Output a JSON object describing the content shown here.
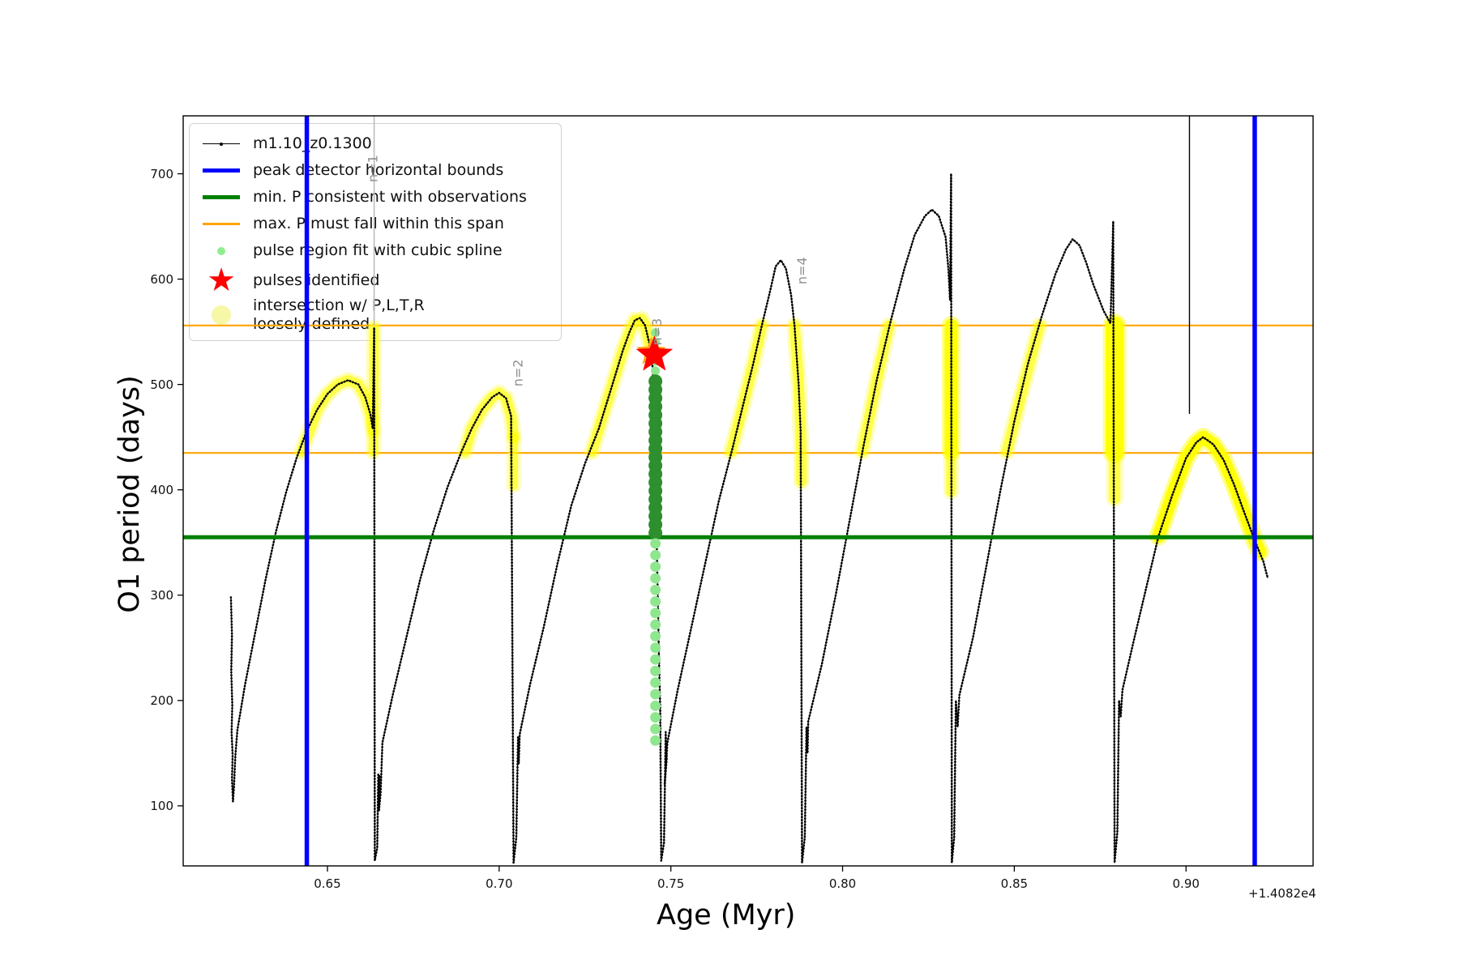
{
  "figure": {
    "xlabel": "Age (Myr)",
    "ylabel": "O1 period (days)",
    "x_offset_text": "+1.4082e4"
  },
  "legend": {
    "items": [
      {
        "label": "m1.10_z0.1300",
        "swatch": "line-dot",
        "color": "#000000",
        "lw": 1.5
      },
      {
        "label": "peak detector horizontal bounds",
        "swatch": "line",
        "color": "#0000ff",
        "lw": 5
      },
      {
        "label": "min. P consistent with observations",
        "swatch": "line",
        "color": "#008000",
        "lw": 5
      },
      {
        "label": "max. P must fall within this span",
        "swatch": "line",
        "color": "#ffa500",
        "lw": 2.5
      },
      {
        "label": "pulse region fit with cubic spline",
        "swatch": "dot",
        "color": "#90ee90",
        "size": 10
      },
      {
        "label": "pulses identified",
        "swatch": "star",
        "color": "#ff0000",
        "size": 40
      },
      {
        "label": "intersection w/ P,L,T,R",
        "label2": "loosely defined",
        "swatch": "dot",
        "color": "#f7f7a8",
        "size": 24
      }
    ]
  },
  "chart_data": {
    "type": "line",
    "title": "",
    "xlabel": "Age (Myr)",
    "ylabel": "O1 period (days)",
    "x_offset": "+1.4082e4",
    "xlim": [
      0.608,
      0.937
    ],
    "ylim": [
      43,
      755
    ],
    "grid": false,
    "legend_position": "upper left",
    "xticks": [
      {
        "v": 0.65,
        "label": "0.65"
      },
      {
        "v": 0.7,
        "label": "0.70"
      },
      {
        "v": 0.75,
        "label": "0.75"
      },
      {
        "v": 0.8,
        "label": "0.80"
      },
      {
        "v": 0.85,
        "label": "0.85"
      },
      {
        "v": 0.9,
        "label": "0.90"
      }
    ],
    "yticks": [
      {
        "v": 100,
        "label": "100"
      },
      {
        "v": 200,
        "label": "200"
      },
      {
        "v": 300,
        "label": "300"
      },
      {
        "v": 400,
        "label": "400"
      },
      {
        "v": 500,
        "label": "500"
      },
      {
        "v": 600,
        "label": "600"
      },
      {
        "v": 700,
        "label": "700"
      }
    ],
    "hlines": [
      {
        "name": "max-P-upper-bound",
        "y": 556,
        "color": "#ffa500",
        "lw": 2.2
      },
      {
        "name": "max-P-lower-bound",
        "y": 435,
        "color": "#ffa500",
        "lw": 2.2
      },
      {
        "name": "min-P-observed",
        "y": 355,
        "color": "#008000",
        "lw": 5
      }
    ],
    "vlines": [
      {
        "name": "peak-detector-left",
        "x": 0.644,
        "y1": 43,
        "y2": 755,
        "color": "#0000ff",
        "lw": 5.5
      },
      {
        "name": "peak-detector-right",
        "x": 0.92,
        "y1": 43,
        "y2": 755,
        "color": "#0000ff",
        "lw": 5.5
      },
      {
        "name": "n1-marker-line",
        "x": 0.6636,
        "y1": 556,
        "y2": 755,
        "color": "#bdbdbd",
        "lw": 1.6
      },
      {
        "name": "spur-line",
        "x": 0.901,
        "y1": 472,
        "y2": 755,
        "color": "#000000",
        "lw": 1.4
      }
    ],
    "n_labels": [
      {
        "text": "n=1",
        "x": 0.6645,
        "y": 692
      },
      {
        "text": "n=2",
        "x": 0.7068,
        "y": 498
      },
      {
        "text": "n=3",
        "x": 0.7472,
        "y": 537
      },
      {
        "text": "n=4",
        "x": 0.7895,
        "y": 595
      }
    ],
    "series": [
      {
        "name": "m1.10_z0.1300",
        "color": "#000000",
        "points": [
          [
            0.6219,
            298
          ],
          [
            0.6222,
            262
          ],
          [
            0.622,
            228
          ],
          [
            0.6223,
            196
          ],
          [
            0.6221,
            170
          ],
          [
            0.6224,
            148
          ],
          [
            0.6222,
            126
          ],
          [
            0.6225,
            104
          ],
          [
            0.6228,
            118
          ],
          [
            0.6232,
            148
          ],
          [
            0.6238,
            172
          ],
          [
            0.626,
            215
          ],
          [
            0.629,
            265
          ],
          [
            0.632,
            315
          ],
          [
            0.635,
            360
          ],
          [
            0.638,
            398
          ],
          [
            0.641,
            430
          ],
          [
            0.644,
            456
          ],
          [
            0.647,
            476
          ],
          [
            0.65,
            491
          ],
          [
            0.653,
            500
          ],
          [
            0.656,
            504
          ],
          [
            0.659,
            500
          ],
          [
            0.661,
            488
          ],
          [
            0.6625,
            472
          ],
          [
            0.6632,
            458
          ],
          [
            0.6636,
            554
          ],
          [
            0.6638,
            48
          ],
          [
            0.6645,
            60
          ],
          [
            0.6648,
            130
          ],
          [
            0.6652,
            128
          ],
          [
            0.665,
            95
          ],
          [
            0.6655,
            112
          ],
          [
            0.666,
            160
          ],
          [
            0.669,
            205
          ],
          [
            0.673,
            260
          ],
          [
            0.677,
            315
          ],
          [
            0.681,
            362
          ],
          [
            0.685,
            403
          ],
          [
            0.689,
            436
          ],
          [
            0.692,
            458
          ],
          [
            0.695,
            476
          ],
          [
            0.698,
            488
          ],
          [
            0.7,
            492
          ],
          [
            0.702,
            487
          ],
          [
            0.7035,
            470
          ],
          [
            0.7042,
            46
          ],
          [
            0.705,
            70
          ],
          [
            0.7055,
            165
          ],
          [
            0.7057,
            140
          ],
          [
            0.706,
            168
          ],
          [
            0.709,
            215
          ],
          [
            0.713,
            270
          ],
          [
            0.717,
            330
          ],
          [
            0.721,
            385
          ],
          [
            0.725,
            425
          ],
          [
            0.729,
            458
          ],
          [
            0.733,
            500
          ],
          [
            0.736,
            532
          ],
          [
            0.738,
            550
          ],
          [
            0.7395,
            561
          ],
          [
            0.741,
            563
          ],
          [
            0.7425,
            556
          ],
          [
            0.7438,
            538
          ],
          [
            0.7443,
            535
          ],
          [
            0.7448,
            510
          ],
          [
            0.7452,
            470
          ],
          [
            0.7455,
            430
          ],
          [
            0.7457,
            380
          ],
          [
            0.746,
            330
          ],
          [
            0.7463,
            280
          ],
          [
            0.7466,
            230
          ],
          [
            0.7469,
            195
          ],
          [
            0.7472,
            48
          ],
          [
            0.748,
            65
          ],
          [
            0.7485,
            170
          ],
          [
            0.7488,
            145
          ],
          [
            0.7482,
            120
          ],
          [
            0.749,
            160
          ],
          [
            0.752,
            210
          ],
          [
            0.756,
            270
          ],
          [
            0.76,
            330
          ],
          [
            0.764,
            390
          ],
          [
            0.768,
            440
          ],
          [
            0.771,
            480
          ],
          [
            0.774,
            520
          ],
          [
            0.7765,
            556
          ],
          [
            0.779,
            590
          ],
          [
            0.7805,
            612
          ],
          [
            0.782,
            618
          ],
          [
            0.7835,
            610
          ],
          [
            0.785,
            585
          ],
          [
            0.786,
            556
          ],
          [
            0.7872,
            500
          ],
          [
            0.7878,
            455
          ],
          [
            0.7882,
            46
          ],
          [
            0.789,
            70
          ],
          [
            0.7895,
            175
          ],
          [
            0.7898,
            150
          ],
          [
            0.79,
            180
          ],
          [
            0.794,
            235
          ],
          [
            0.798,
            300
          ],
          [
            0.802,
            370
          ],
          [
            0.806,
            440
          ],
          [
            0.81,
            505
          ],
          [
            0.814,
            560
          ],
          [
            0.818,
            610
          ],
          [
            0.821,
            642
          ],
          [
            0.824,
            660
          ],
          [
            0.826,
            666
          ],
          [
            0.828,
            660
          ],
          [
            0.83,
            640
          ],
          [
            0.8308,
            610
          ],
          [
            0.8313,
            580
          ],
          [
            0.8316,
            700
          ],
          [
            0.8318,
            46
          ],
          [
            0.8325,
            70
          ],
          [
            0.833,
            200
          ],
          [
            0.8335,
            175
          ],
          [
            0.834,
            205
          ],
          [
            0.838,
            260
          ],
          [
            0.842,
            330
          ],
          [
            0.846,
            400
          ],
          [
            0.85,
            465
          ],
          [
            0.854,
            520
          ],
          [
            0.858,
            565
          ],
          [
            0.862,
            605
          ],
          [
            0.865,
            628
          ],
          [
            0.867,
            638
          ],
          [
            0.869,
            632
          ],
          [
            0.871,
            615
          ],
          [
            0.873,
            595
          ],
          [
            0.876,
            570
          ],
          [
            0.878,
            558
          ],
          [
            0.8788,
            655
          ],
          [
            0.8792,
            46
          ],
          [
            0.88,
            75
          ],
          [
            0.8805,
            200
          ],
          [
            0.881,
            185
          ],
          [
            0.8815,
            210
          ],
          [
            0.885,
            260
          ],
          [
            0.889,
            315
          ],
          [
            0.892,
            356
          ],
          [
            0.896,
            395
          ],
          [
            0.9,
            430
          ],
          [
            0.903,
            445
          ],
          [
            0.905,
            450
          ],
          [
            0.908,
            443
          ],
          [
            0.911,
            428
          ],
          [
            0.914,
            405
          ],
          [
            0.917,
            378
          ],
          [
            0.92,
            352
          ],
          [
            0.9215,
            340
          ],
          [
            0.9225,
            332
          ],
          [
            0.9238,
            316
          ]
        ]
      }
    ],
    "yellow_segments": [
      {
        "style": "pale",
        "lw": 13,
        "pts": [
          [
            0.6425,
            436
          ],
          [
            0.647,
            476
          ],
          [
            0.65,
            491
          ],
          [
            0.653,
            500
          ],
          [
            0.656,
            504
          ],
          [
            0.659,
            500
          ],
          [
            0.661,
            488
          ],
          [
            0.6625,
            472
          ],
          [
            0.6632,
            456
          ]
        ]
      },
      {
        "style": "pale",
        "lw": 12,
        "pts": [
          [
            0.6634,
            436
          ],
          [
            0.6636,
            554
          ]
        ]
      },
      {
        "style": "pale",
        "lw": 13,
        "pts": [
          [
            0.69,
            436
          ],
          [
            0.692,
            458
          ],
          [
            0.695,
            476
          ],
          [
            0.698,
            488
          ],
          [
            0.7,
            492
          ],
          [
            0.702,
            487
          ],
          [
            0.7035,
            470
          ],
          [
            0.7042,
            450
          ]
        ]
      },
      {
        "style": "pale",
        "lw": 11,
        "pts": [
          [
            0.7042,
            450
          ],
          [
            0.7042,
            404
          ]
        ]
      },
      {
        "style": "pale",
        "lw": 13,
        "pts": [
          [
            0.727,
            436
          ],
          [
            0.733,
            500
          ],
          [
            0.736,
            532
          ],
          [
            0.738,
            550
          ],
          [
            0.7395,
            561
          ]
        ]
      },
      {
        "style": "pale",
        "lw": 13,
        "pts": [
          [
            0.7415,
            562
          ],
          [
            0.7425,
            556
          ],
          [
            0.7438,
            538
          ],
          [
            0.7445,
            526
          ]
        ]
      },
      {
        "style": "pale",
        "lw": 13,
        "pts": [
          [
            0.7675,
            436
          ],
          [
            0.771,
            480
          ],
          [
            0.774,
            520
          ],
          [
            0.7765,
            556
          ]
        ]
      },
      {
        "style": "pale",
        "lw": 13,
        "pts": [
          [
            0.786,
            556
          ],
          [
            0.7872,
            500
          ],
          [
            0.7878,
            455
          ],
          [
            0.788,
            436
          ],
          [
            0.788,
            408
          ]
        ]
      },
      {
        "style": "pale",
        "lw": 13,
        "pts": [
          [
            0.8057,
            436
          ],
          [
            0.81,
            505
          ],
          [
            0.8135,
            556
          ]
        ]
      },
      {
        "style": "bright",
        "lw": 16,
        "pts": [
          [
            0.8316,
            556
          ],
          [
            0.8316,
            436
          ]
        ]
      },
      {
        "style": "pale",
        "lw": 12,
        "pts": [
          [
            0.8316,
            436
          ],
          [
            0.8316,
            398
          ]
        ]
      },
      {
        "style": "pale",
        "lw": 13,
        "pts": [
          [
            0.8478,
            436
          ],
          [
            0.852,
            490
          ],
          [
            0.856,
            540
          ],
          [
            0.8574,
            556
          ]
        ]
      },
      {
        "style": "bright",
        "lw": 22,
        "pts": [
          [
            0.8792,
            556
          ],
          [
            0.8792,
            436
          ]
        ]
      },
      {
        "style": "pale",
        "lw": 14,
        "pts": [
          [
            0.8792,
            436
          ],
          [
            0.8792,
            392
          ]
        ]
      },
      {
        "style": "bright",
        "lw": 16,
        "pts": [
          [
            0.892,
            356
          ],
          [
            0.896,
            395
          ],
          [
            0.9,
            430
          ],
          [
            0.903,
            445
          ],
          [
            0.905,
            450
          ],
          [
            0.908,
            443
          ],
          [
            0.911,
            428
          ],
          [
            0.914,
            405
          ],
          [
            0.917,
            378
          ],
          [
            0.92,
            352
          ],
          [
            0.9215,
            341
          ]
        ]
      }
    ],
    "spline_dots": {
      "x": 0.7455,
      "light_above": {
        "y1": 549,
        "y2": 506,
        "step": 9,
        "r": 5.5,
        "color": "#8fe68f"
      },
      "dark": {
        "y1": 503,
        "y2": 353,
        "step": 8,
        "r": 8.5,
        "color": "#2d8f2d"
      },
      "light_below": {
        "y1": 349,
        "y2": 152,
        "step": 11,
        "r": 6.5,
        "color": "#8fe68f"
      }
    },
    "stars": [
      {
        "name": "pulse-candidate-star",
        "x": 0.7443,
        "y": 531,
        "r": 19,
        "color": "#ffa514"
      },
      {
        "name": "pulse-identified-star",
        "x": 0.7452,
        "y": 528,
        "r": 24,
        "color": "#ff0000"
      }
    ],
    "colors": {
      "yellow": "#ffff00",
      "track": "#000000"
    }
  }
}
